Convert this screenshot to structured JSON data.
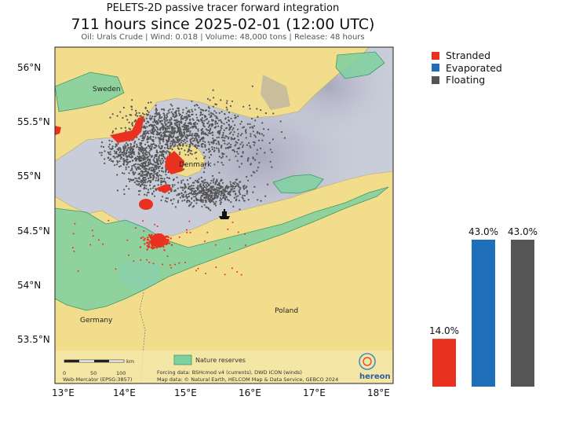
{
  "header": {
    "title": "PELETS-2D passive tracer forward integration",
    "headline": "711 hours since 2025-02-01 (12:00 UTC)",
    "subtitle": "Oil: Urals Crude | Wind: 0.018 | Volume: 48,000 tons | Release: 48 hours"
  },
  "map": {
    "lat_labels": [
      "56°N",
      "55.5°N",
      "55°N",
      "54.5°N",
      "54°N",
      "53.5°N"
    ],
    "lon_labels": [
      "13°E",
      "14°E",
      "15°E",
      "16°E",
      "17°E",
      "18°E"
    ],
    "places": {
      "sweden": "Sweden",
      "denmark": "Denmark",
      "germany": "Germany",
      "poland": "Poland"
    },
    "scalebar": {
      "ticks": [
        "0",
        "50",
        "100"
      ],
      "unit": "km"
    },
    "projection": "Web-Mercator (EPSG:3857)",
    "nature_label": "Nature reserves",
    "forcing": "Forcing data: BSHcmod v4 (currents), DWD ICON (winds)",
    "mapdata": "Map data: © Natural Earth, HELCOM Map & Data Service, GEBCO 2024",
    "logo_text": "hereon",
    "colors": {
      "land": "#f2dd8c",
      "sea": "#c8ccd8",
      "reserve": "#7fd0a0",
      "stranded": "#e8321f",
      "floating": "#555555"
    }
  },
  "legend": {
    "items": [
      {
        "label": "Stranded",
        "color": "#e8321f"
      },
      {
        "label": "Evaporated",
        "color": "#1f6fb8"
      },
      {
        "label": "Floating",
        "color": "#555555"
      }
    ]
  },
  "chart_data": {
    "type": "bar",
    "categories": [
      "Stranded",
      "Evaporated",
      "Floating"
    ],
    "values": [
      14.0,
      43.0,
      43.0
    ],
    "labels": [
      "14.0%",
      "43.0%",
      "43.0%"
    ],
    "colors": [
      "#e8321f",
      "#1f6fb8",
      "#555555"
    ],
    "unit": "%"
  }
}
